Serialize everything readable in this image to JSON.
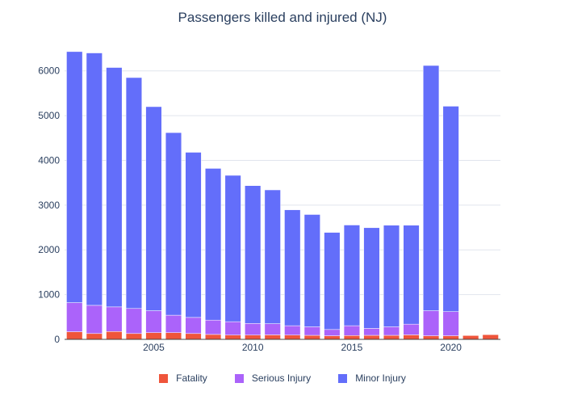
{
  "chart_data": {
    "type": "bar",
    "stacked": true,
    "title": "Passengers killed and injured (NJ)",
    "xlabel": "",
    "ylabel": "",
    "x": [
      2001,
      2002,
      2003,
      2004,
      2005,
      2006,
      2007,
      2008,
      2009,
      2010,
      2011,
      2012,
      2013,
      2014,
      2015,
      2016,
      2017,
      2018,
      2019,
      2020,
      2021,
      2022
    ],
    "xticks": [
      "2005",
      "2010",
      "2015",
      "2020"
    ],
    "yticks": [
      "0",
      "1000",
      "2000",
      "3000",
      "4000",
      "5000",
      "6000"
    ],
    "ylim": [
      0,
      6500
    ],
    "grid": true,
    "legend_position": "bottom",
    "series": [
      {
        "name": "Fatality",
        "color": "#EF553B",
        "values": [
          170,
          130,
          175,
          130,
          150,
          150,
          130,
          110,
          95,
          95,
          100,
          95,
          90,
          80,
          85,
          90,
          90,
          100,
          80,
          80,
          85,
          105
        ]
      },
      {
        "name": "Serious Injury",
        "color": "#AB63FA",
        "values": [
          650,
          630,
          550,
          560,
          490,
          390,
          360,
          320,
          300,
          260,
          250,
          210,
          190,
          140,
          220,
          155,
          190,
          240,
          560,
          540,
          0,
          0
        ]
      },
      {
        "name": "Minor Injury",
        "color": "#636EFA",
        "values": [
          5610,
          5640,
          5350,
          5160,
          4560,
          4080,
          3690,
          3390,
          3270,
          3080,
          2990,
          2590,
          2510,
          2170,
          2250,
          2250,
          2270,
          2210,
          5480,
          4590,
          0,
          0
        ]
      }
    ]
  }
}
